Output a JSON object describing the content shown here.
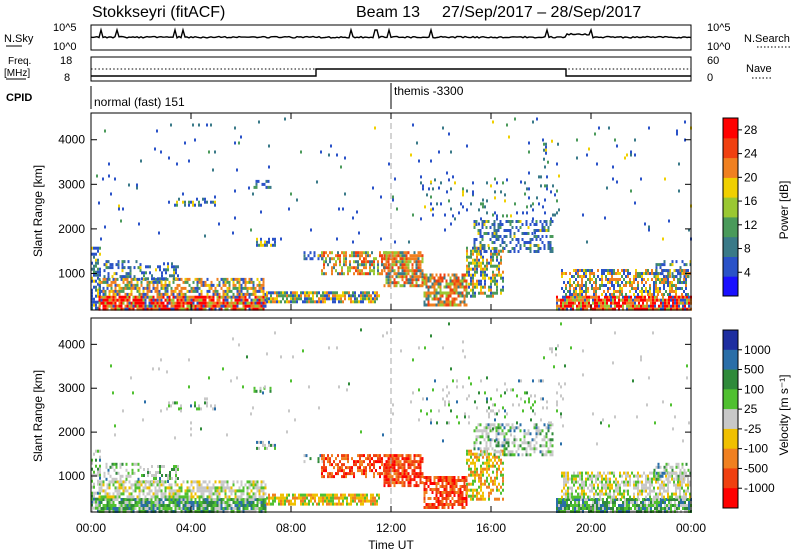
{
  "header": {
    "station": "Stokkseyri (fitACF)",
    "beam": "Beam 13",
    "date_range": "27/Sep/2017 – 28/Sep/2017"
  },
  "top_panels": {
    "nsky_label": "N.Sky",
    "nsky_ticks": [
      "10^5",
      "10^0"
    ],
    "nsearch_label": "N.Search",
    "nsearch_ticks": [
      "10^5",
      "10^0"
    ],
    "freq_label_1": "Freq.",
    "freq_label_2": "[MHz]",
    "freq_ticks": [
      "18",
      "8"
    ],
    "nave_label": "Nave",
    "nave_ticks": [
      "60",
      "0"
    ],
    "cpid_label": "CPID",
    "cpid_modes": [
      "normal (fast) 151",
      "themis -3300"
    ]
  },
  "chart_data": [
    {
      "type": "heatmap",
      "name": "power",
      "ylabel": "Slant Range [km]",
      "xlabel": "",
      "x_ticks": [
        "00:00",
        "04:00",
        "08:00",
        "12:00",
        "16:00",
        "20:00",
        "00:00"
      ],
      "x_range_hours": [
        0,
        24
      ],
      "y_ticks": [
        1000,
        2000,
        3000,
        4000
      ],
      "ylim": [
        180,
        4600
      ],
      "colorbar": {
        "label": "Power [dB]",
        "ticks": [
          4,
          8,
          12,
          16,
          20,
          24,
          28
        ],
        "range": [
          0,
          30
        ],
        "colors": [
          "#1a10ff",
          "#2a52c8",
          "#3a7a88",
          "#4a9a5a",
          "#9ac832",
          "#f0d000",
          "#f08020",
          "#f04010",
          "#ff0000"
        ]
      },
      "marker_hour": 12
    },
    {
      "type": "heatmap",
      "name": "velocity",
      "ylabel": "Slant Range [km]",
      "xlabel": "Time UT",
      "x_ticks": [
        "00:00",
        "04:00",
        "08:00",
        "12:00",
        "16:00",
        "20:00",
        "00:00"
      ],
      "x_range_hours": [
        0,
        24
      ],
      "y_ticks": [
        1000,
        2000,
        3000,
        4000
      ],
      "ylim": [
        180,
        4600
      ],
      "colorbar": {
        "label": "Velocity [m s⁻¹]",
        "ticks": [
          "1000",
          "500",
          "100",
          "25",
          "-25",
          "-100",
          "-500",
          "-1000"
        ],
        "colors": [
          "#1e2ea0",
          "#2a6ea8",
          "#2f8a3a",
          "#50c030",
          "#c8c8c8",
          "#f0c000",
          "#f08020",
          "#f04010",
          "#ff0000"
        ]
      },
      "marker_hour": 12
    }
  ]
}
